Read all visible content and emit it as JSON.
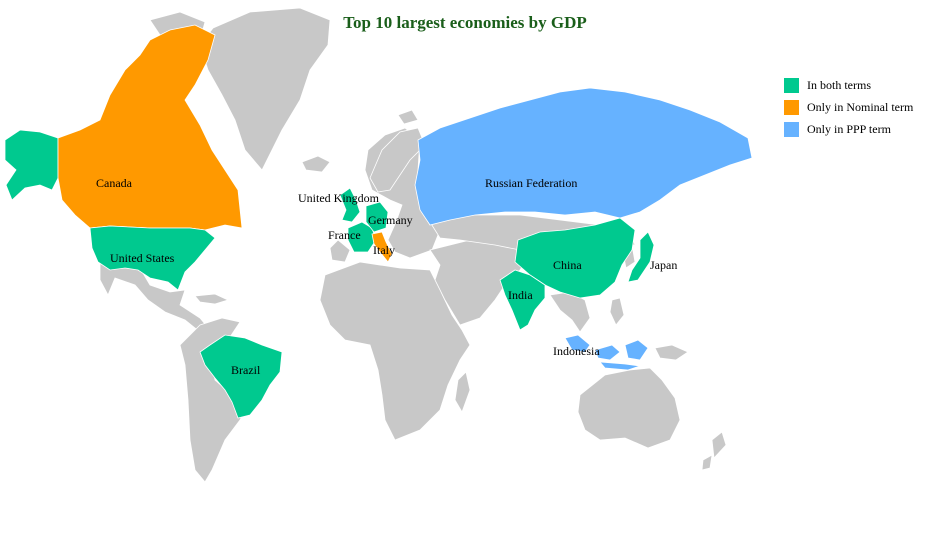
{
  "title": "Top 10 largest economies by GDP",
  "legend": [
    {
      "label": "In both terms",
      "color": "#00c98f"
    },
    {
      "label": "Only in Nominal term",
      "color": "#ff9900"
    },
    {
      "label": "Only in PPP term",
      "color": "#66b2ff"
    }
  ],
  "countries": {
    "canada": {
      "name": "Canada",
      "category": "Only in Nominal term",
      "color": "#ff9900"
    },
    "united_states": {
      "name": "United States",
      "category": "In both terms",
      "color": "#00c98f"
    },
    "brazil": {
      "name": "Brazil",
      "category": "In both terms",
      "color": "#00c98f"
    },
    "united_kingdom": {
      "name": "United Kingdom",
      "category": "In both terms",
      "color": "#00c98f"
    },
    "germany": {
      "name": "Germany",
      "category": "In both terms",
      "color": "#00c98f"
    },
    "france": {
      "name": "France",
      "category": "In both terms",
      "color": "#00c98f"
    },
    "italy": {
      "name": "Italy",
      "category": "Only in Nominal term",
      "color": "#ff9900"
    },
    "russia": {
      "name": "Russian Federation",
      "category": "Only in PPP term",
      "color": "#66b2ff"
    },
    "china": {
      "name": "China",
      "category": "In both terms",
      "color": "#00c98f"
    },
    "india": {
      "name": "India",
      "category": "In both terms",
      "color": "#00c98f"
    },
    "japan": {
      "name": "Japan",
      "category": "In both terms",
      "color": "#00c98f"
    },
    "indonesia": {
      "name": "Indonesia",
      "category": "Only in PPP term",
      "color": "#66b2ff"
    }
  },
  "base_color": "#c8c8c8"
}
